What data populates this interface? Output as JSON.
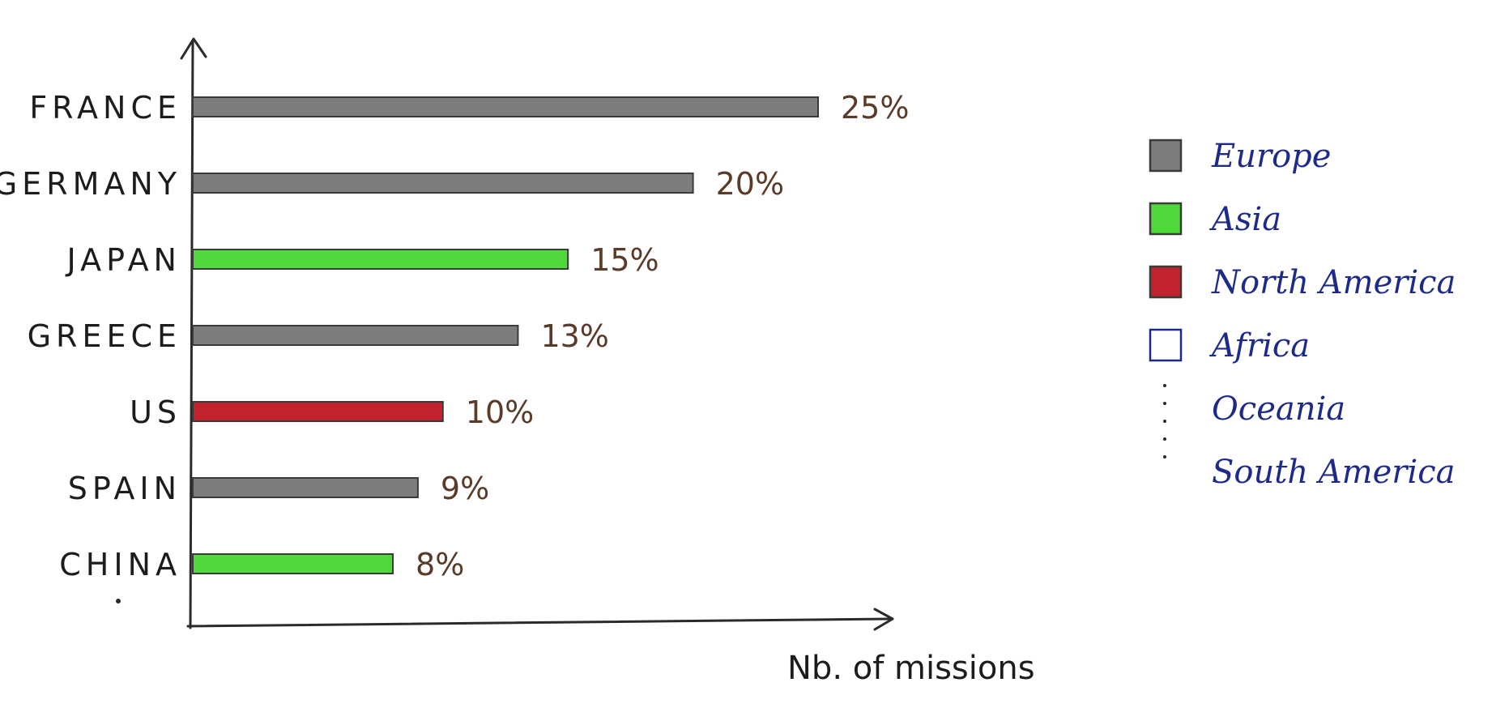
{
  "chart_data": {
    "type": "bar",
    "orientation": "horizontal",
    "title": "",
    "xlabel": "Nb. of missions",
    "ylabel": "",
    "xlim": [
      0,
      25
    ],
    "grid": false,
    "legend_position": "right",
    "categories": [
      "FRANCE",
      "GERMANY",
      "JAPAN",
      "GREECE",
      "US",
      "SPAIN",
      "CHINA"
    ],
    "values": [
      25,
      20,
      15,
      13,
      10,
      9,
      8
    ],
    "value_labels": [
      "25%",
      "20%",
      "15%",
      "13%",
      "10%",
      "9%",
      "8%"
    ],
    "bar_regions": [
      "Europe",
      "Europe",
      "Asia",
      "Europe",
      "North America",
      "Europe",
      "Asia"
    ],
    "legend": [
      {
        "label": "Europe",
        "color": "#7d7d7d",
        "marker": "swatch"
      },
      {
        "label": "Asia",
        "color": "#4ed83a",
        "marker": "swatch"
      },
      {
        "label": "North America",
        "color": "#c2242e",
        "marker": "swatch"
      },
      {
        "label": "Africa",
        "color": "#ffffff",
        "marker": "outline"
      },
      {
        "label": "Oceania",
        "color": "",
        "marker": "none"
      },
      {
        "label": "South America",
        "color": "",
        "marker": "none"
      }
    ],
    "region_colors": {
      "Europe": "#7d7d7d",
      "Asia": "#4ed83a",
      "North America": "#c2242e"
    }
  }
}
